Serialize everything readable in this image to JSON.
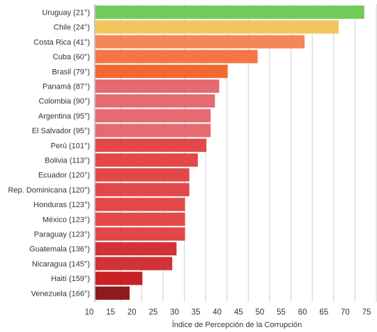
{
  "chart_data": {
    "type": "bar",
    "orientation": "horizontal",
    "categories": [
      "Uruguay (21°)",
      "Chile (24°)",
      "Costa Rica (41°)",
      "Cuba (60°)",
      "Brasil (79°)",
      "Panamá (87°)",
      "Colombia (90°)",
      "Argentina (95°)",
      "El Salvador (95°)",
      "Perú (101°)",
      "Bolivia (113°)",
      "Ecuador (120°)",
      "Rep. Dominicana (120°)",
      "Honduras (123°)",
      "México (123°)",
      "Paraguay (123°)",
      "Guatemala (136°)",
      "Nicaragua (145°)",
      "Haití (159°)",
      "Venezuela (166°)"
    ],
    "values": [
      73,
      67,
      59,
      48,
      41,
      39,
      38,
      37,
      37,
      36,
      34,
      32,
      32,
      31,
      31,
      31,
      29,
      28,
      21,
      18
    ],
    "colors": [
      "#72cc5b",
      "#f2c65d",
      "#f48659",
      "#f47545",
      "#f26a32",
      "#e56a72",
      "#e56a72",
      "#e56a72",
      "#e56a72",
      "#e2484a",
      "#e2484a",
      "#e2484a",
      "#e2484a",
      "#e2484a",
      "#e2484a",
      "#e2484a",
      "#d13237",
      "#d13237",
      "#c82125",
      "#8e1a1c"
    ],
    "xlabel": "Índice de Percepción de la Corrupción",
    "xlim": [
      10,
      75
    ],
    "xticks": [
      10,
      15,
      20,
      25,
      30,
      35,
      40,
      45,
      50,
      55,
      60,
      65,
      70,
      75
    ],
    "grid": true
  }
}
